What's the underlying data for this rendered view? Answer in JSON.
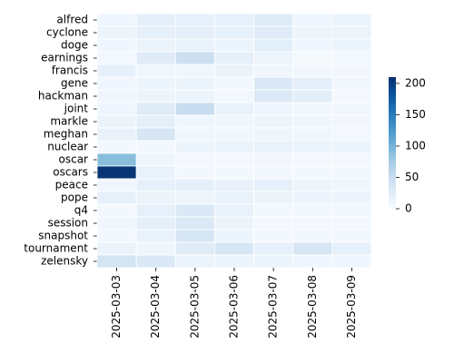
{
  "chart_data": {
    "type": "heatmap",
    "x": [
      "2025-03-03",
      "2025-03-04",
      "2025-03-05",
      "2025-03-06",
      "2025-03-07",
      "2025-03-08",
      "2025-03-09"
    ],
    "y": [
      "alfred",
      "cyclone",
      "doge",
      "earnings",
      "francis",
      "gene",
      "hackman",
      "joint",
      "markle",
      "meghan",
      "nuclear",
      "oscar",
      "oscars",
      "peace",
      "pope",
      "q4",
      "session",
      "snapshot",
      "tournament",
      "zelensky"
    ],
    "values": [
      [
        8,
        20,
        18,
        18,
        25,
        8,
        12
      ],
      [
        12,
        18,
        20,
        18,
        25,
        10,
        12
      ],
      [
        8,
        12,
        15,
        12,
        22,
        8,
        10
      ],
      [
        5,
        25,
        45,
        18,
        10,
        3,
        5
      ],
      [
        18,
        8,
        8,
        12,
        8,
        6,
        6
      ],
      [
        8,
        10,
        12,
        5,
        30,
        20,
        6
      ],
      [
        8,
        10,
        10,
        5,
        30,
        22,
        5
      ],
      [
        8,
        25,
        50,
        15,
        8,
        6,
        6
      ],
      [
        12,
        20,
        8,
        8,
        10,
        8,
        6
      ],
      [
        15,
        35,
        8,
        8,
        10,
        8,
        5
      ],
      [
        5,
        5,
        10,
        12,
        15,
        12,
        12
      ],
      [
        90,
        8,
        5,
        5,
        6,
        5,
        5
      ],
      [
        205,
        15,
        5,
        5,
        6,
        5,
        5
      ],
      [
        8,
        18,
        20,
        15,
        18,
        10,
        8
      ],
      [
        18,
        12,
        10,
        15,
        12,
        10,
        10
      ],
      [
        5,
        18,
        30,
        15,
        5,
        5,
        5
      ],
      [
        8,
        20,
        30,
        12,
        5,
        5,
        5
      ],
      [
        5,
        15,
        35,
        10,
        5,
        5,
        5
      ],
      [
        12,
        8,
        25,
        35,
        18,
        35,
        18
      ],
      [
        38,
        30,
        12,
        10,
        10,
        8,
        8
      ]
    ],
    "zlim": [
      0,
      210
    ],
    "colorbar_ticks": [
      0,
      50,
      100,
      150,
      200
    ],
    "colorscale": [
      "#f7fbff",
      "#deebf7",
      "#c6dbef",
      "#9ecae1",
      "#6baed6",
      "#4292c6",
      "#2171b5",
      "#08519c",
      "#08306b"
    ]
  }
}
